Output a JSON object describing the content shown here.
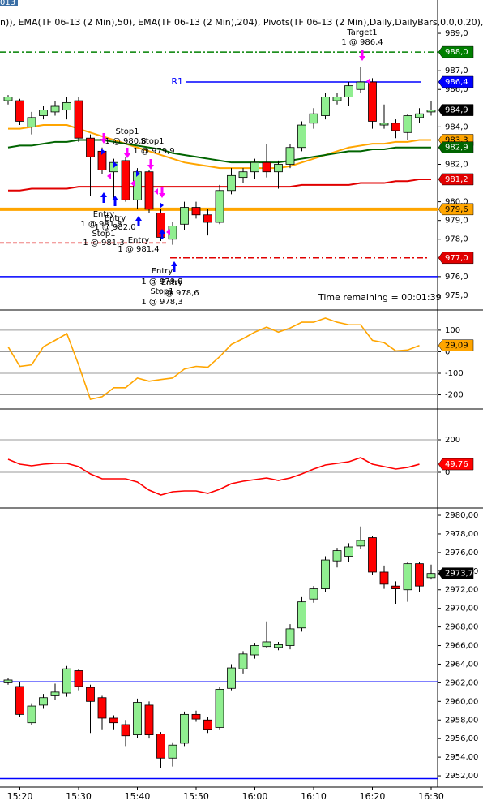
{
  "chart_data": [
    {
      "type": "candlestick",
      "tab": "013",
      "title": "n)), EMA(TF 06-13 (2 Min),50), EMA(TF 06-13 (2 Min),204), Pivots(TF 06-13 (2 Min),Daily,DailyBars,0,0,0,20),",
      "status": "Time remaining = 00:01:39",
      "open": [
        985.4,
        985.4,
        984.0,
        984.6,
        984.8,
        984.9,
        985.4,
        983.4,
        982.7,
        981.6,
        982.2,
        980.1,
        981.6,
        979.4,
        978.0,
        978.8,
        979.7,
        979.3,
        978.9,
        980.6,
        981.3,
        981.6,
        982.1,
        981.6,
        982.0,
        982.9,
        984.2,
        984.6,
        985.4,
        985.6,
        986.0,
        986.4,
        984.1,
        984.2,
        983.7,
        984.5,
        984.8
      ],
      "high": [
        985.7,
        985.5,
        984.8,
        985.1,
        985.4,
        985.6,
        985.6,
        983.6,
        982.9,
        982.3,
        982.4,
        981.8,
        981.7,
        979.6,
        978.9,
        980.0,
        980.0,
        979.6,
        980.9,
        981.8,
        981.8,
        982.3,
        983.1,
        982.2,
        983.1,
        984.3,
        985.0,
        985.8,
        985.8,
        986.4,
        987.2,
        986.6,
        985.2,
        984.4,
        984.7,
        985.0,
        985.4
      ],
      "low": [
        985.2,
        984.1,
        983.6,
        984.4,
        984.6,
        984.4,
        983.2,
        980.3,
        981.5,
        980.2,
        980.0,
        979.6,
        979.4,
        977.9,
        977.7,
        978.5,
        979.1,
        978.2,
        978.8,
        980.4,
        981.0,
        981.2,
        981.3,
        980.7,
        981.8,
        982.7,
        983.9,
        984.4,
        985.2,
        985.1,
        985.8,
        983.9,
        983.9,
        983.4,
        983.3,
        984.2,
        984.6
      ],
      "close": [
        985.6,
        984.3,
        984.5,
        984.9,
        985.1,
        985.3,
        983.4,
        982.4,
        981.7,
        982.1,
        980.1,
        981.6,
        979.6,
        978.1,
        978.7,
        979.7,
        979.3,
        978.9,
        980.6,
        981.4,
        981.6,
        982.1,
        981.6,
        982.0,
        982.9,
        984.1,
        984.7,
        985.6,
        985.6,
        986.2,
        986.4,
        984.3,
        984.2,
        983.8,
        984.6,
        984.7,
        984.9
      ],
      "up_color": "#90ee90",
      "down_color": "#ff0000",
      "ylim": [
        974.26,
        990.78
      ],
      "yticks": [
        {
          "value": 989,
          "label": "989,0"
        },
        {
          "value": 987,
          "label": "987,0"
        },
        {
          "value": 986,
          "label": "986,0"
        },
        {
          "value": 984,
          "label": "984,0"
        },
        {
          "value": 982,
          "label": "982,0"
        },
        {
          "value": 980,
          "label": "980,0"
        },
        {
          "value": 979,
          "label": "979,0"
        },
        {
          "value": 978,
          "label": "978,0"
        },
        {
          "value": 976,
          "label": "976,0"
        },
        {
          "value": 975,
          "label": "975,0"
        }
      ],
      "series": [
        {
          "color": "#ffa500",
          "values": [
            983.9,
            983.9,
            984.0,
            984.1,
            984.1,
            984.1,
            983.9,
            983.7,
            983.5,
            983.3,
            983.1,
            982.9,
            982.7,
            982.5,
            982.3,
            982.1,
            982.0,
            981.9,
            981.8,
            981.8,
            981.8,
            981.8,
            981.8,
            981.8,
            981.9,
            982.1,
            982.3,
            982.5,
            982.7,
            982.9,
            983.0,
            983.1,
            983.1,
            983.2,
            983.2,
            983.3,
            983.3
          ]
        },
        {
          "color": "#006400",
          "values": [
            982.9,
            983.0,
            983.0,
            983.1,
            983.2,
            983.2,
            983.3,
            983.3,
            983.3,
            983.2,
            983.1,
            983.0,
            982.9,
            982.8,
            982.6,
            982.5,
            982.4,
            982.3,
            982.2,
            982.1,
            982.1,
            982.1,
            982.1,
            982.1,
            982.2,
            982.3,
            982.4,
            982.5,
            982.6,
            982.7,
            982.7,
            982.8,
            982.8,
            982.9,
            982.9,
            982.9,
            982.9
          ]
        },
        {
          "color": "#e00000",
          "values": [
            980.6,
            980.6,
            980.7,
            980.7,
            980.7,
            980.7,
            980.8,
            980.8,
            980.8,
            980.8,
            980.8,
            980.8,
            980.8,
            980.8,
            980.8,
            980.8,
            980.8,
            980.8,
            980.8,
            980.8,
            980.8,
            980.8,
            980.8,
            980.8,
            980.8,
            980.9,
            980.9,
            980.9,
            980.9,
            980.9,
            981.0,
            981.0,
            981.0,
            981.1,
            981.1,
            981.2,
            981.2
          ]
        }
      ],
      "levels": [
        {
          "value": 988.0,
          "color": "#008000",
          "dash": "dashdot"
        },
        {
          "value": 986.4,
          "color": "#0000ff",
          "label": "R1"
        },
        {
          "value": 979.6,
          "color": "#ffa500"
        },
        {
          "value": 977.8,
          "color": "#e00000",
          "dash": "dash"
        },
        {
          "value": 977.0,
          "color": "#e00000",
          "dash": "dashdot"
        },
        {
          "value": 976.0,
          "color": "#0000ff"
        }
      ],
      "tags": [
        {
          "value": 988.0,
          "label": "988,0",
          "color": "#008000"
        },
        {
          "value": 986.4,
          "label": "986,4",
          "color": "#0000ff"
        },
        {
          "value": 984.9,
          "label": "984,9",
          "color": "#000000"
        },
        {
          "value": 983.3,
          "label": "983,3",
          "color": "#ffa500"
        },
        {
          "value": 982.9,
          "label": "982,9",
          "color": "#006400"
        },
        {
          "value": 981.2,
          "label": "981,2",
          "color": "#e00000"
        },
        {
          "value": 979.6,
          "label": "979,6",
          "color": "#ffa500"
        },
        {
          "value": 977.0,
          "label": "977,0",
          "color": "#e00000"
        }
      ],
      "annotations": [
        "Target1",
        "1 @ 986,4",
        "Stop1",
        "1 @ 980,8",
        "Stop1",
        "1 @ 979,9",
        "Entry",
        "Entry",
        "1 @ 981,8",
        "1 @ 982,0",
        "Stop1",
        "1 @ 981,3",
        "Entry",
        "1 @ 981,4",
        "Entry",
        "1 @ 979,8",
        "Entry",
        "Stop1",
        "1 @ 978,6",
        "1 @ 978,3"
      ]
    },
    {
      "type": "line",
      "color": "#ffa500",
      "values": [
        23,
        -68,
        -61,
        23,
        53,
        84,
        -61,
        -221,
        -209,
        -167,
        -167,
        -122,
        -137,
        -129,
        -122,
        -80,
        -68,
        -72,
        -23,
        34,
        61,
        91,
        114,
        91,
        110,
        137,
        137,
        156,
        137,
        125,
        125,
        53,
        42,
        4,
        8,
        29.09,
        null
      ],
      "ylim": [
        -262,
        190
      ],
      "yticks": [
        100,
        0,
        -100,
        -200
      ],
      "grid": true,
      "tags": [
        {
          "value": 29.09,
          "label": "29,09",
          "color": "#ffa500"
        }
      ]
    },
    {
      "type": "line",
      "color": "#ff0000",
      "values": [
        80,
        50,
        40,
        50,
        55,
        55,
        35,
        -10,
        -40,
        -40,
        -40,
        -60,
        -110,
        -140,
        -120,
        -115,
        -115,
        -130,
        -105,
        -70,
        -55,
        -45,
        -35,
        -50,
        -35,
        -10,
        20,
        45,
        55,
        65,
        90,
        50,
        35,
        20,
        30,
        49.76,
        null
      ],
      "ylim": [
        -215,
        385
      ],
      "yticks": [
        200,
        0
      ],
      "grid": true,
      "tags": [
        {
          "value": 49.76,
          "label": "49,76",
          "color": "#ff0000"
        }
      ]
    },
    {
      "type": "candlestick",
      "categories": [
        null,
        "15:20",
        null,
        null,
        null,
        null,
        "15:30",
        null,
        null,
        null,
        null,
        "15:40",
        null,
        null,
        null,
        null,
        "15:50",
        null,
        null,
        null,
        null,
        "16:00",
        null,
        null,
        null,
        null,
        "16:10",
        null,
        null,
        null,
        null,
        "16:20",
        null,
        null,
        null,
        null,
        "16:30"
      ],
      "open": [
        2962.0,
        2961.6,
        2957.7,
        2959.6,
        2960.6,
        2960.9,
        2963.3,
        2961.5,
        2960.4,
        2958.2,
        2957.5,
        2956.4,
        2959.6,
        2956.5,
        2953.9,
        2955.5,
        2958.6,
        2958.0,
        2957.2,
        2961.4,
        2963.5,
        2965.0,
        2965.9,
        2965.8,
        2966.0,
        2967.9,
        2971.0,
        2972.1,
        2975.1,
        2975.6,
        2976.7,
        2977.6,
        2973.9,
        2972.4,
        2972.0,
        2974.8,
        2973.3
      ],
      "high": [
        2962.5,
        2962.1,
        2959.8,
        2960.8,
        2961.9,
        2963.8,
        2963.5,
        2961.8,
        2960.6,
        2958.5,
        2958.0,
        2960.3,
        2960.0,
        2956.7,
        2955.6,
        2958.9,
        2959.0,
        2958.3,
        2961.6,
        2964.0,
        2965.4,
        2966.3,
        2968.6,
        2966.4,
        2968.3,
        2971.2,
        2972.4,
        2975.6,
        2976.5,
        2977.0,
        2978.8,
        2977.8,
        2974.6,
        2972.9,
        2975.0,
        2975.0,
        2974.7
      ],
      "low": [
        2961.8,
        2958.3,
        2957.5,
        2959.2,
        2960.2,
        2960.5,
        2961.2,
        2956.6,
        2957.0,
        2957.0,
        2955.2,
        2956.1,
        2956.0,
        2952.8,
        2953.0,
        2955.2,
        2957.8,
        2956.6,
        2957.0,
        2961.2,
        2963.0,
        2964.6,
        2965.7,
        2965.5,
        2965.6,
        2967.5,
        2970.6,
        2971.8,
        2974.4,
        2975.0,
        2976.4,
        2973.6,
        2972.1,
        2970.5,
        2970.7,
        2971.8,
        2973.1
      ],
      "close": [
        2962.3,
        2958.6,
        2959.5,
        2960.4,
        2961.0,
        2963.5,
        2961.6,
        2960.0,
        2958.2,
        2957.7,
        2956.3,
        2959.9,
        2956.4,
        2953.9,
        2955.3,
        2958.6,
        2958.1,
        2957.0,
        2961.3,
        2963.6,
        2965.1,
        2966.0,
        2966.4,
        2966.1,
        2967.8,
        2970.7,
        2972.1,
        2975.2,
        2976.2,
        2976.6,
        2977.3,
        2973.9,
        2972.6,
        2972.1,
        2974.8,
        2972.4,
        2973.75
      ],
      "up_color": "#90ee90",
      "down_color": "#ff0000",
      "ylim": [
        2950.87,
        2980.7
      ],
      "yticks": [
        {
          "value": 2980,
          "label": "2980,00"
        },
        {
          "value": 2978,
          "label": "2978,00"
        },
        {
          "value": 2976,
          "label": "2976,00"
        },
        {
          "value": 2974,
          "label": "2974,00"
        },
        {
          "value": 2972,
          "label": "2972,00"
        },
        {
          "value": 2970,
          "label": "2970,00"
        },
        {
          "value": 2968,
          "label": "2968,00"
        },
        {
          "value": 2966,
          "label": "2966,00"
        },
        {
          "value": 2964,
          "label": "2964,00"
        },
        {
          "value": 2962,
          "label": "2962,00"
        },
        {
          "value": 2960,
          "label": "2960,00"
        },
        {
          "value": 2958,
          "label": "2958,00"
        },
        {
          "value": 2956,
          "label": "2956,00"
        },
        {
          "value": 2954,
          "label": "2954,00"
        },
        {
          "value": 2952,
          "label": "2952,00"
        }
      ],
      "levels": [
        {
          "value": 2962.1,
          "color": "#0000ff"
        },
        {
          "value": 2951.7,
          "color": "#0000ff"
        }
      ],
      "tags": [
        {
          "value": 2973.75,
          "label": "2973,75",
          "color": "#000000"
        }
      ]
    }
  ]
}
